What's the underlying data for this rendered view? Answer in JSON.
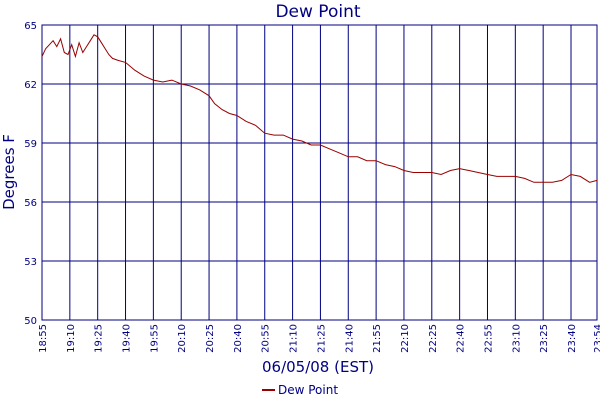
{
  "chart_data": {
    "type": "line",
    "title": "Dew Point",
    "xlabel": "06/05/08 (EST)",
    "ylabel": "Degrees F",
    "x_unit": "time of day (EST)",
    "x_range": [
      "18:55",
      "23:54"
    ],
    "ylim": [
      50,
      65
    ],
    "y_ticks": [
      50,
      53,
      56,
      59,
      62,
      65
    ],
    "x_ticks": [
      "18:55",
      "19:10",
      "19:25",
      "19:40",
      "19:55",
      "20:10",
      "20:25",
      "20:40",
      "20:55",
      "21:10",
      "21:25",
      "21:40",
      "21:55",
      "22:10",
      "22:25",
      "22:40",
      "22:55",
      "23:10",
      "23:25",
      "23:40",
      "23:54"
    ],
    "grid": true,
    "legend": "bottom-center",
    "colors": {
      "line": "#990000",
      "grid": "#000080",
      "text": "#000080"
    },
    "series": [
      {
        "name": "Dew Point",
        "x": [
          "18:55",
          "18:57",
          "18:59",
          "19:01",
          "19:03",
          "19:05",
          "19:07",
          "19:09",
          "19:11",
          "19:13",
          "19:15",
          "19:17",
          "19:19",
          "19:21",
          "19:23",
          "19:25",
          "19:27",
          "19:29",
          "19:31",
          "19:33",
          "19:36",
          "19:40",
          "19:45",
          "19:50",
          "19:55",
          "20:00",
          "20:05",
          "20:10",
          "20:15",
          "20:20",
          "20:25",
          "20:28",
          "20:32",
          "20:36",
          "20:40",
          "20:45",
          "20:50",
          "20:55",
          "21:00",
          "21:05",
          "21:10",
          "21:15",
          "21:20",
          "21:25",
          "21:30",
          "21:35",
          "21:40",
          "21:45",
          "21:50",
          "21:55",
          "22:00",
          "22:05",
          "22:10",
          "22:15",
          "22:20",
          "22:25",
          "22:30",
          "22:35",
          "22:40",
          "22:45",
          "22:50",
          "22:55",
          "23:00",
          "23:05",
          "23:10",
          "23:15",
          "23:20",
          "23:25",
          "23:30",
          "23:35",
          "23:40",
          "23:45",
          "23:50",
          "23:54"
        ],
        "y": [
          63.4,
          63.8,
          64.0,
          64.2,
          63.9,
          64.3,
          63.6,
          63.5,
          64.0,
          63.4,
          64.1,
          63.6,
          63.9,
          64.2,
          64.5,
          64.4,
          64.1,
          63.8,
          63.5,
          63.3,
          63.2,
          63.1,
          62.7,
          62.4,
          62.2,
          62.1,
          62.2,
          62.0,
          61.9,
          61.7,
          61.4,
          61.0,
          60.7,
          60.5,
          60.4,
          60.1,
          59.9,
          59.5,
          59.4,
          59.4,
          59.2,
          59.1,
          58.9,
          58.9,
          58.7,
          58.5,
          58.3,
          58.3,
          58.1,
          58.1,
          57.9,
          57.8,
          57.6,
          57.5,
          57.5,
          57.5,
          57.4,
          57.6,
          57.7,
          57.6,
          57.5,
          57.4,
          57.3,
          57.3,
          57.3,
          57.2,
          57.0,
          57.0,
          57.0,
          57.1,
          57.4,
          57.3,
          57.0,
          57.1
        ]
      }
    ]
  }
}
